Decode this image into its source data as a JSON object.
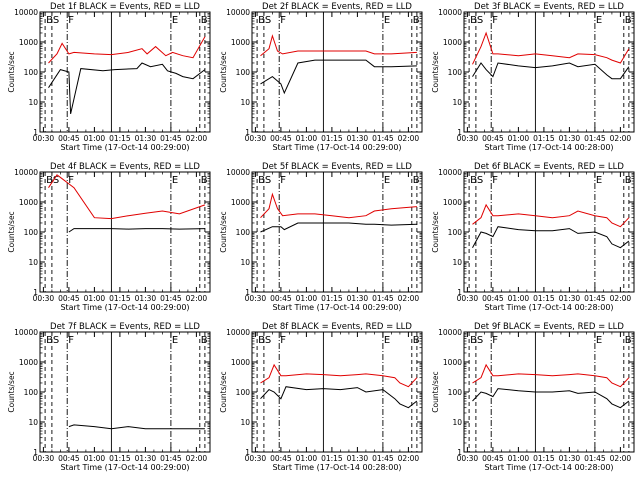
{
  "colors": {
    "events": "#000000",
    "lld": "#e00000",
    "frame": "#000000",
    "background": "#ffffff"
  },
  "shared": {
    "xlabel_prefix": "Start Time (",
    "xlabel_suffix": ")",
    "ylabel": "Counts/sec",
    "xticks": [
      "00:30",
      "00:45",
      "01:00",
      "01:15",
      "01:30",
      "01:45",
      "02:00"
    ],
    "xtick_minutes": [
      30,
      45,
      60,
      75,
      90,
      105,
      120
    ],
    "xlim_minutes": [
      28,
      128
    ],
    "yticks": [
      "1",
      "10",
      "100",
      "1000",
      "10000"
    ],
    "ylim": [
      1,
      10000
    ],
    "yscale": "log",
    "markers": [
      {
        "label": "B",
        "minute": 31,
        "style": "dashed"
      },
      {
        "label": "S",
        "minute": 35,
        "style": "dashed"
      },
      {
        "label": "F",
        "minute": 44,
        "style": "dashdot"
      },
      {
        "label": "",
        "minute": 70,
        "style": "solid"
      },
      {
        "label": "E",
        "minute": 105,
        "style": "dashdot"
      },
      {
        "label": "B",
        "minute": 122,
        "style": "dashed"
      },
      {
        "label": "",
        "minute": 125,
        "style": "dashed"
      }
    ]
  },
  "chart_data": [
    {
      "type": "line",
      "title": "Det 1f BLACK = Events, RED = LLD",
      "date": "17-Oct-14 00:29:00",
      "series": [
        {
          "name": "Events",
          "color": "black",
          "x": [
            33,
            40,
            45,
            46,
            52,
            65,
            72,
            85,
            88,
            93,
            100,
            103,
            108,
            112,
            118,
            125
          ],
          "y": [
            30,
            120,
            100,
            4,
            130,
            110,
            120,
            130,
            200,
            150,
            180,
            110,
            90,
            70,
            60,
            120
          ]
        },
        {
          "name": "LLD",
          "color": "red",
          "x": [
            33,
            38,
            41,
            45,
            48,
            60,
            70,
            80,
            88,
            91,
            96,
            102,
            106,
            112,
            118,
            125
          ],
          "y": [
            200,
            400,
            900,
            400,
            450,
            400,
            380,
            450,
            600,
            400,
            700,
            350,
            450,
            350,
            300,
            1500
          ]
        }
      ]
    },
    {
      "type": "line",
      "title": "Det 2f BLACK = Events, RED = LLD",
      "date": "17-Oct-14 00:29:00",
      "series": [
        {
          "name": "Events",
          "color": "black",
          "x": [
            33,
            40,
            45,
            47,
            55,
            65,
            75,
            85,
            95,
            100,
            110,
            125
          ],
          "y": [
            40,
            70,
            40,
            20,
            200,
            250,
            250,
            250,
            250,
            150,
            150,
            160
          ]
        },
        {
          "name": "LLD",
          "color": "red",
          "x": [
            33,
            38,
            40,
            43,
            46,
            55,
            65,
            75,
            85,
            95,
            100,
            110,
            125
          ],
          "y": [
            350,
            600,
            1600,
            500,
            400,
            500,
            500,
            500,
            500,
            500,
            400,
            400,
            450
          ]
        }
      ]
    },
    {
      "type": "line",
      "title": "Det 3f BLACK = Events, RED = LLD",
      "date": "17-Oct-14 00:28:00",
      "series": [
        {
          "name": "Events",
          "color": "black",
          "x": [
            33,
            38,
            41,
            45,
            48,
            60,
            70,
            80,
            90,
            95,
            105,
            112,
            115,
            120,
            125
          ],
          "y": [
            70,
            200,
            120,
            70,
            200,
            160,
            140,
            160,
            200,
            150,
            180,
            80,
            60,
            60,
            150
          ]
        },
        {
          "name": "LLD",
          "color": "red",
          "x": [
            33,
            38,
            41,
            45,
            48,
            60,
            70,
            80,
            90,
            95,
            105,
            112,
            115,
            120,
            125
          ],
          "y": [
            180,
            700,
            2000,
            400,
            400,
            350,
            400,
            350,
            300,
            400,
            380,
            300,
            250,
            200,
            600
          ]
        }
      ]
    },
    {
      "type": "line",
      "title": "Det 4f BLACK = Events, RED = LLD",
      "date": "17-Oct-14 00:29:00",
      "series": [
        {
          "name": "Events",
          "color": "black",
          "x": [
            45,
            48,
            60,
            70,
            80,
            90,
            100,
            110,
            125
          ],
          "y": [
            100,
            130,
            130,
            130,
            125,
            130,
            130,
            125,
            130
          ]
        },
        {
          "name": "LLD",
          "color": "red",
          "x": [
            33,
            38,
            41,
            45,
            48,
            60,
            70,
            80,
            90,
            100,
            110,
            125
          ],
          "y": [
            3000,
            8000,
            6000,
            4000,
            3000,
            300,
            280,
            350,
            420,
            500,
            400,
            800
          ]
        }
      ]
    },
    {
      "type": "line",
      "title": "Det 5f BLACK = Events, RED = LLD",
      "date": "17-Oct-14 00:29:00",
      "series": [
        {
          "name": "Events",
          "color": "black",
          "x": [
            33,
            40,
            45,
            47,
            55,
            65,
            75,
            85,
            95,
            100,
            110,
            125
          ],
          "y": [
            100,
            150,
            150,
            120,
            200,
            200,
            200,
            200,
            180,
            180,
            170,
            180
          ]
        },
        {
          "name": "LLD",
          "color": "red",
          "x": [
            33,
            38,
            40,
            43,
            46,
            55,
            65,
            75,
            85,
            95,
            100,
            110,
            125
          ],
          "y": [
            300,
            600,
            1800,
            600,
            350,
            400,
            400,
            350,
            300,
            350,
            500,
            600,
            700
          ]
        }
      ]
    },
    {
      "type": "line",
      "title": "Det 6f BLACK = Events, RED = LLD",
      "date": "17-Oct-14 00:28:00",
      "series": [
        {
          "name": "Events",
          "color": "black",
          "x": [
            33,
            38,
            41,
            45,
            48,
            60,
            70,
            80,
            90,
            95,
            105,
            112,
            115,
            120,
            125
          ],
          "y": [
            30,
            100,
            90,
            70,
            150,
            120,
            110,
            110,
            130,
            90,
            100,
            70,
            40,
            30,
            50
          ]
        },
        {
          "name": "LLD",
          "color": "red",
          "x": [
            33,
            38,
            41,
            45,
            48,
            60,
            70,
            80,
            90,
            95,
            105,
            112,
            115,
            120,
            125
          ],
          "y": [
            180,
            300,
            800,
            350,
            350,
            400,
            350,
            300,
            350,
            500,
            350,
            300,
            200,
            150,
            300
          ]
        }
      ]
    },
    {
      "type": "line",
      "title": "Det 7f BLACK = Events, RED = LLD",
      "date": "17-Oct-14 00:29:00",
      "series": [
        {
          "name": "Events",
          "color": "black",
          "x": [
            45,
            48,
            60,
            70,
            80,
            90,
            100,
            110,
            125
          ],
          "y": [
            7,
            8,
            7,
            6,
            7,
            6,
            6,
            6,
            6
          ]
        }
      ]
    },
    {
      "type": "line",
      "title": "Det 8f BLACK = Events, RED = LLD",
      "date": "17-Oct-14 00:28:00",
      "series": [
        {
          "name": "Events",
          "color": "black",
          "x": [
            33,
            38,
            41,
            45,
            48,
            60,
            70,
            80,
            90,
            95,
            105,
            112,
            115,
            120,
            125
          ],
          "y": [
            60,
            120,
            100,
            60,
            150,
            120,
            130,
            120,
            140,
            100,
            120,
            60,
            40,
            30,
            50
          ]
        },
        {
          "name": "LLD",
          "color": "red",
          "x": [
            33,
            38,
            41,
            45,
            48,
            60,
            70,
            80,
            90,
            95,
            105,
            112,
            115,
            120,
            125
          ],
          "y": [
            200,
            300,
            800,
            350,
            350,
            400,
            380,
            350,
            380,
            400,
            350,
            300,
            200,
            150,
            300
          ]
        }
      ]
    },
    {
      "type": "line",
      "title": "Det 9f BLACK = Events, RED = LLD",
      "date": "17-Oct-14 00:28:00",
      "series": [
        {
          "name": "Events",
          "color": "black",
          "x": [
            33,
            38,
            41,
            45,
            48,
            60,
            70,
            80,
            90,
            95,
            105,
            112,
            115,
            120,
            125
          ],
          "y": [
            50,
            100,
            90,
            70,
            130,
            110,
            100,
            100,
            110,
            90,
            100,
            60,
            40,
            30,
            50
          ]
        },
        {
          "name": "LLD",
          "color": "red",
          "x": [
            33,
            38,
            41,
            45,
            48,
            60,
            70,
            80,
            90,
            95,
            105,
            112,
            115,
            120,
            125
          ],
          "y": [
            200,
            300,
            800,
            350,
            350,
            400,
            380,
            350,
            380,
            400,
            350,
            300,
            200,
            150,
            300
          ]
        }
      ]
    }
  ]
}
